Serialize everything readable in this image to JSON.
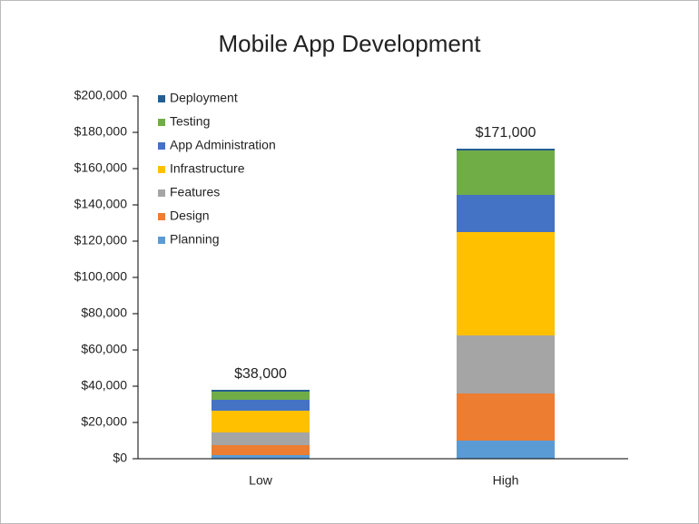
{
  "chart_data": {
    "type": "stacked_bar",
    "title": "Mobile App Development",
    "categories": [
      "Low",
      "High"
    ],
    "series": [
      {
        "name": "Planning",
        "color": "#5b9bd5",
        "values": [
          2000,
          10000
        ]
      },
      {
        "name": "Design",
        "color": "#ed7d31",
        "values": [
          5500,
          26000
        ]
      },
      {
        "name": "Features",
        "color": "#a5a5a5",
        "values": [
          7000,
          32000
        ]
      },
      {
        "name": "Infrastructure",
        "color": "#ffc000",
        "values": [
          12000,
          57000
        ]
      },
      {
        "name": "App Administration",
        "color": "#4472c4",
        "values": [
          6000,
          20500
        ]
      },
      {
        "name": "Testing",
        "color": "#70ad47",
        "values": [
          4500,
          24500
        ]
      },
      {
        "name": "Deployment",
        "color": "#255e91",
        "values": [
          1000,
          1000
        ]
      }
    ],
    "totals": {
      "values": [
        38000,
        171000
      ],
      "value_labels": [
        "$38,000",
        "$171,000"
      ]
    },
    "ylim": [
      0,
      200000
    ],
    "yticks": [
      {
        "value": 0,
        "label": "$0"
      },
      {
        "value": 20000,
        "label": "$20,000"
      },
      {
        "value": 40000,
        "label": "$40,000"
      },
      {
        "value": 60000,
        "label": "$60,000"
      },
      {
        "value": 80000,
        "label": "$80,000"
      },
      {
        "value": 100000,
        "label": "$100,000"
      },
      {
        "value": 120000,
        "label": "$120,000"
      },
      {
        "value": 140000,
        "label": "$140,000"
      },
      {
        "value": 160000,
        "label": "$160,000"
      },
      {
        "value": 180000,
        "label": "$180,000"
      },
      {
        "value": 200000,
        "label": "$200,000"
      }
    ],
    "legend": "upper left"
  }
}
